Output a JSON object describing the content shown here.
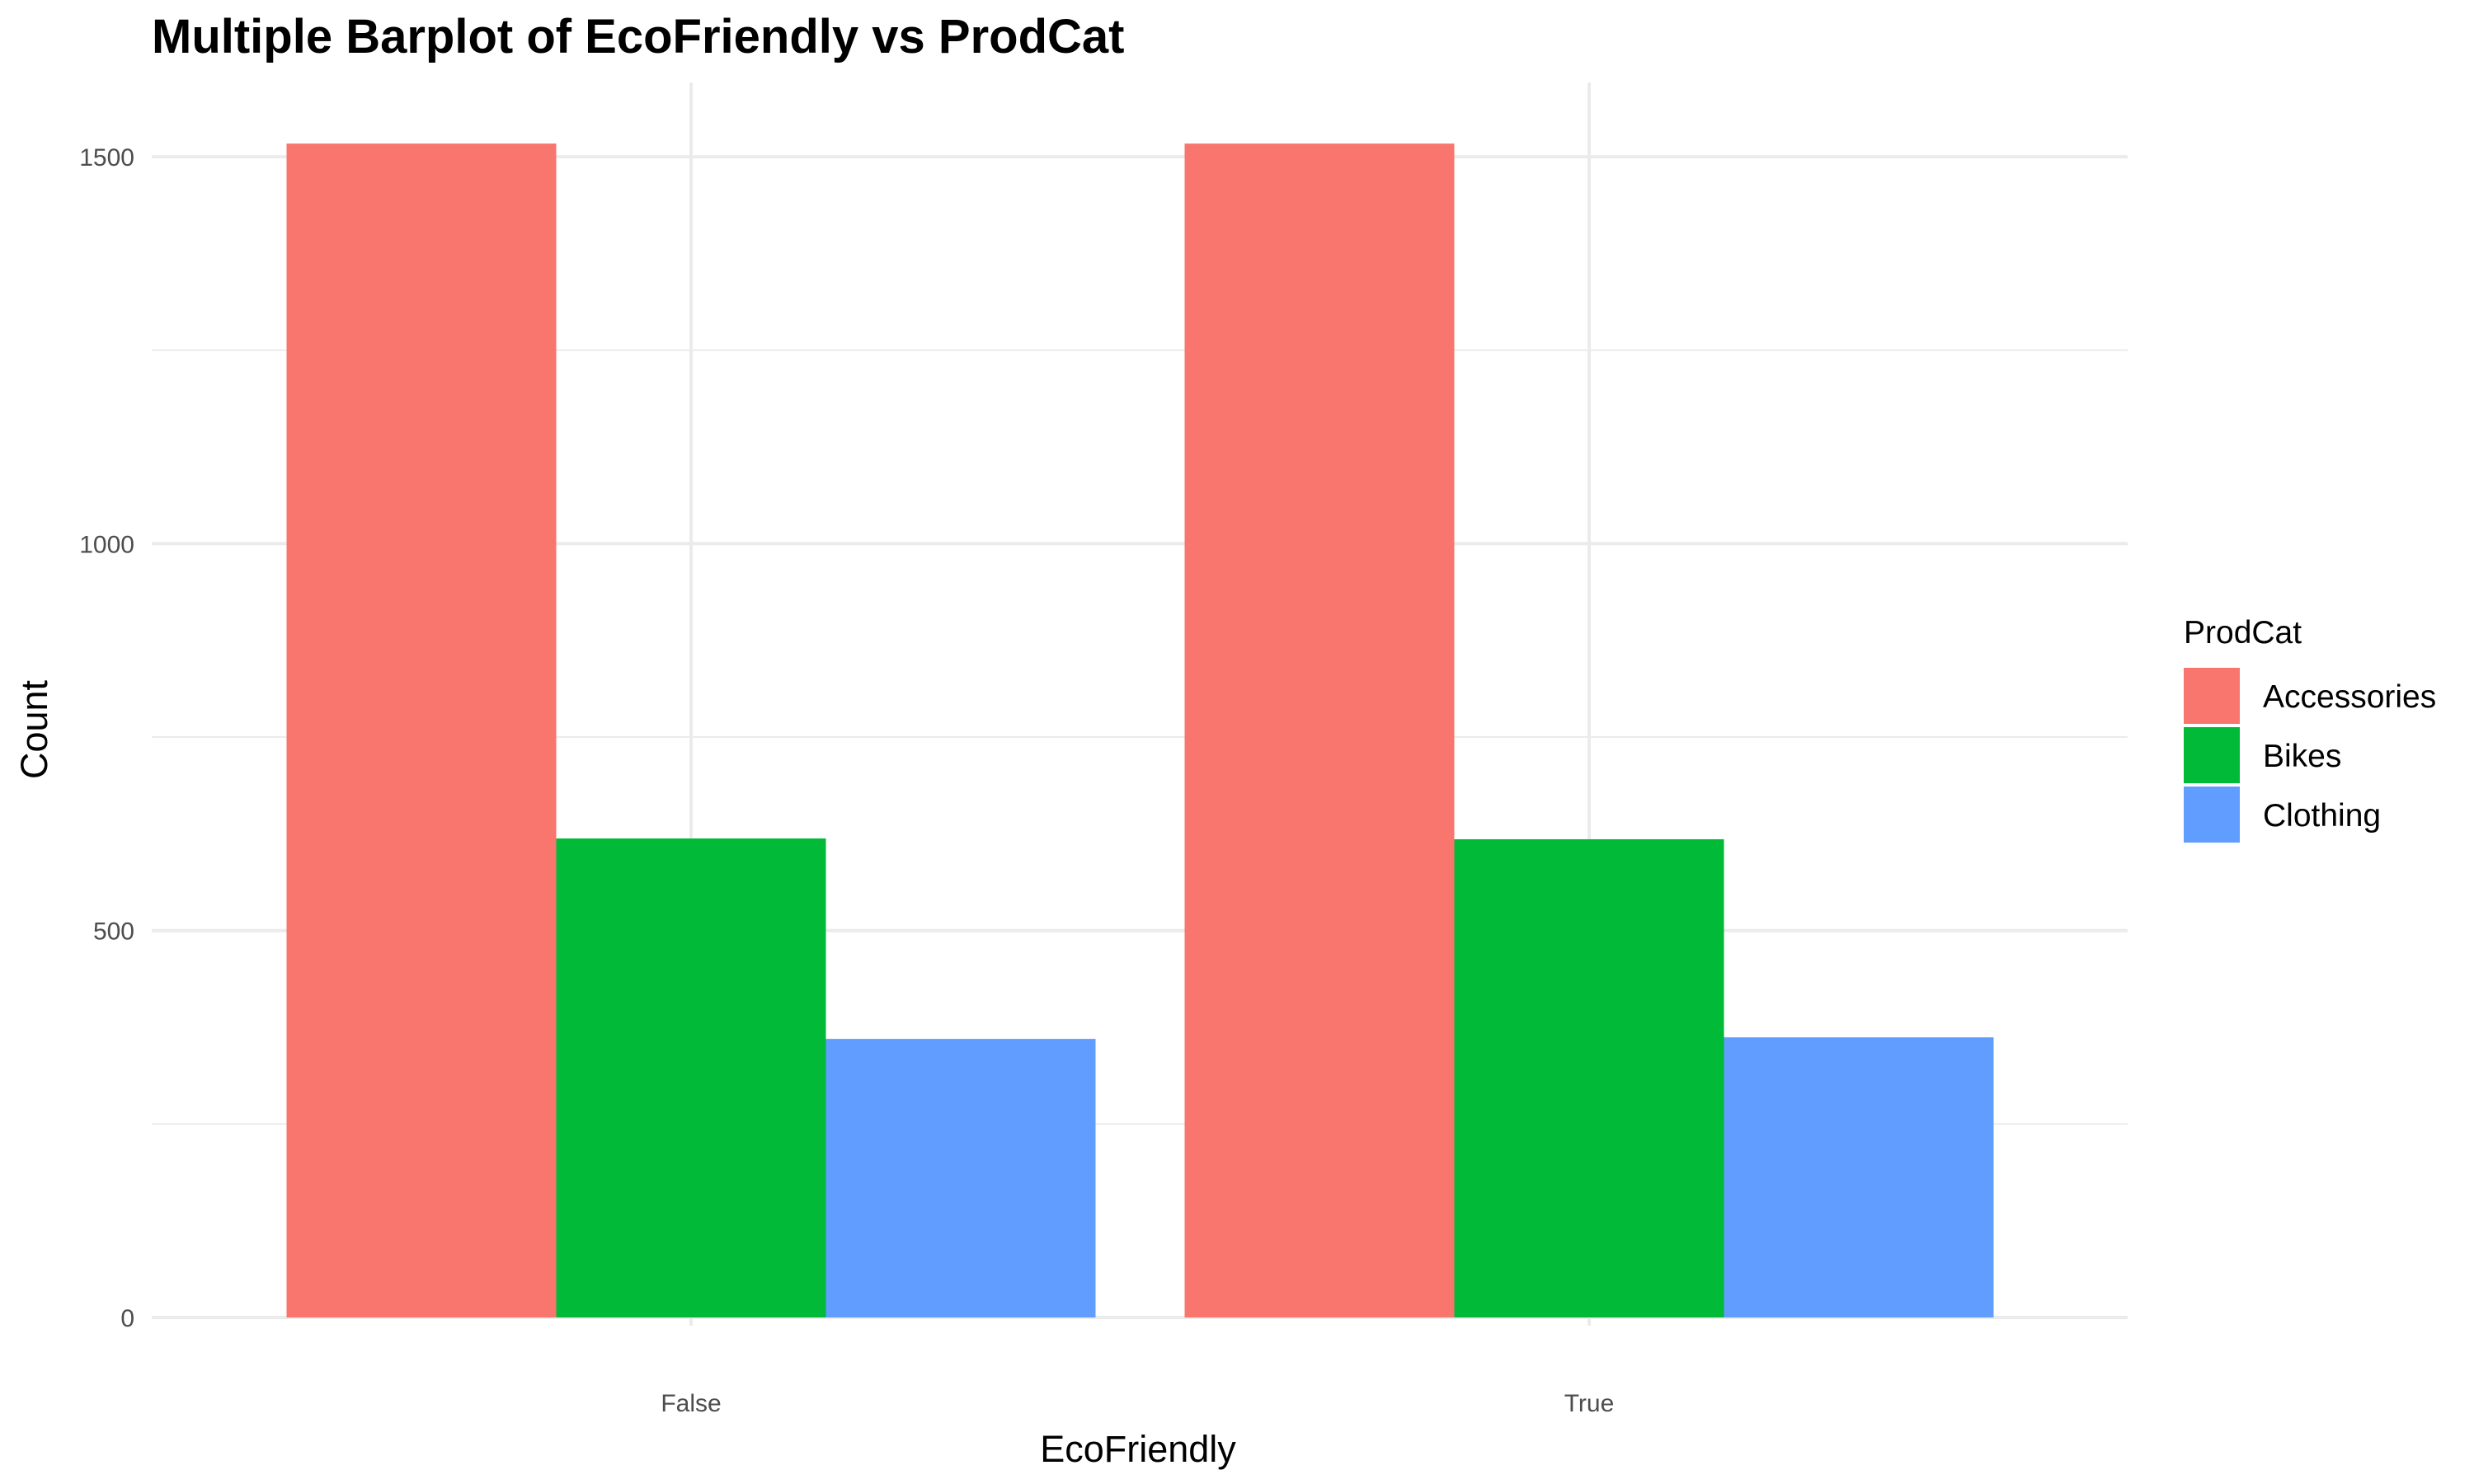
{
  "chart_data": {
    "type": "bar",
    "title": "Multiple Barplot of EcoFriendly vs ProdCat",
    "xlabel": "EcoFriendly",
    "ylabel": "Count",
    "categories": [
      "False",
      "True"
    ],
    "series": [
      {
        "name": "Accessories",
        "color": "#F8766D",
        "values": [
          1517,
          1517
        ]
      },
      {
        "name": "Bikes",
        "color": "#00BA38",
        "values": [
          619,
          618
        ]
      },
      {
        "name": "Clothing",
        "color": "#619CFF",
        "values": [
          360,
          362
        ]
      }
    ],
    "ylim": [
      0,
      1600
    ],
    "yticks": [
      0,
      500,
      1000,
      1500
    ],
    "ytick_labels": [
      "0",
      "500",
      "1000",
      "1500"
    ],
    "grid": true,
    "legend": {
      "title": "ProdCat",
      "position": "right"
    }
  }
}
